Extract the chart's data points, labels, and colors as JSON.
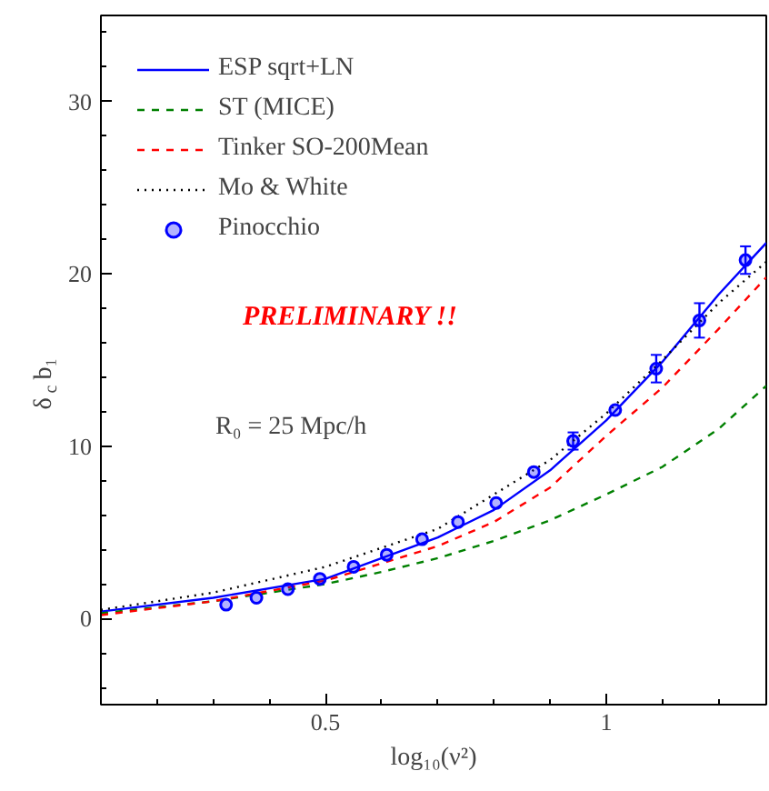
{
  "chart_data": {
    "type": "line",
    "xlabel": "log₁₀(ν²)",
    "ylabel": "δ$_{c}$ b₁",
    "xlim": [
      0.1,
      1.285
    ],
    "ylim": [
      -5,
      35
    ],
    "xticks": [
      {
        "value": 0.2,
        "label": null
      },
      {
        "value": 0.3,
        "label": null
      },
      {
        "value": 0.4,
        "label": null
      },
      0.5,
      {
        "value": 0.6,
        "label": null
      },
      {
        "value": 0.7,
        "label": null
      },
      {
        "value": 0.8,
        "label": null
      },
      {
        "value": 0.9,
        "label": null
      },
      1,
      {
        "value": 1.1,
        "label": null
      },
      {
        "value": 1.2,
        "label": null
      }
    ],
    "yticks": [
      {
        "value": -4,
        "label": null
      },
      {
        "value": -2,
        "label": null
      },
      0,
      {
        "value": 2,
        "label": null
      },
      {
        "value": 4,
        "label": null
      },
      {
        "value": 6,
        "label": null
      },
      {
        "value": 8,
        "label": null
      },
      10,
      {
        "value": 12,
        "label": null
      },
      {
        "value": 14,
        "label": null
      },
      {
        "value": 16,
        "label": null
      },
      {
        "value": 18,
        "label": null
      },
      20,
      {
        "value": 22,
        "label": null
      },
      {
        "value": 24,
        "label": null
      },
      {
        "value": 26,
        "label": null
      },
      {
        "value": 28,
        "label": null
      },
      30,
      {
        "value": 32,
        "label": null
      },
      {
        "value": 34,
        "label": null
      }
    ],
    "grid": false,
    "legend": "top left",
    "annotations": [
      "PRELIMINARY !!",
      "R₀ = 25 Mpc/h"
    ],
    "series": [
      {
        "name": "ESP sqrt+LN",
        "color": "#0000ff",
        "line_style": "solid",
        "marker": "none",
        "x": [
          0.1,
          0.3,
          0.5,
          0.7,
          0.8,
          0.9,
          1.0,
          1.1,
          1.2,
          1.285
        ],
        "values": [
          0.4,
          1.2,
          2.3,
          4.7,
          6.3,
          8.6,
          11.5,
          14.9,
          18.8,
          21.8
        ]
      },
      {
        "name": "ST (MICE)",
        "color": "#008000",
        "line_style": "dashed",
        "marker": "none",
        "x": [
          0.1,
          0.3,
          0.5,
          0.6,
          0.7,
          0.8,
          0.9,
          1.0,
          1.1,
          1.2,
          1.285
        ],
        "values": [
          0.3,
          1.0,
          2.0,
          2.7,
          3.5,
          4.5,
          5.7,
          7.2,
          8.8,
          11.0,
          13.5
        ]
      },
      {
        "name": "Tinker SO-200Mean",
        "color": "#ff0000",
        "line_style": "dashed",
        "marker": "none",
        "x": [
          0.1,
          0.3,
          0.5,
          0.7,
          0.8,
          0.9,
          1.0,
          1.1,
          1.2,
          1.285
        ],
        "values": [
          0.2,
          1.0,
          2.2,
          4.2,
          5.6,
          7.6,
          10.6,
          13.4,
          16.8,
          19.8
        ]
      },
      {
        "name": "Mo & White",
        "color": "#000000",
        "line_style": "dotted",
        "marker": "none",
        "x": [
          0.1,
          0.3,
          0.5,
          0.7,
          0.9,
          1.0,
          1.1,
          1.2,
          1.285
        ],
        "values": [
          0.5,
          1.5,
          3.0,
          5.2,
          9.2,
          11.9,
          15.0,
          18.3,
          20.7
        ]
      },
      {
        "name": "Pinocchio",
        "type": "scatter",
        "color": "#0000ff",
        "marker": "circle",
        "x": [
          0.323,
          0.377,
          0.433,
          0.49,
          0.55,
          0.609,
          0.672,
          0.736,
          0.804,
          0.871,
          0.941,
          1.016,
          1.089,
          1.166,
          1.248
        ],
        "values": [
          0.8,
          1.2,
          1.7,
          2.3,
          3.0,
          3.7,
          4.6,
          5.6,
          6.7,
          8.5,
          10.3,
          12.1,
          14.5,
          17.3,
          20.8
        ],
        "errors": [
          null,
          null,
          null,
          null,
          null,
          null,
          null,
          null,
          null,
          null,
          0.5,
          null,
          0.8,
          1.0,
          0.8
        ]
      }
    ]
  }
}
